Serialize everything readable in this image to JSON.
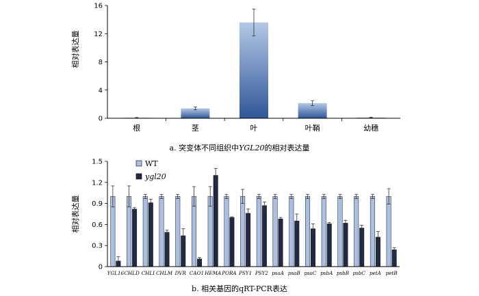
{
  "colors": {
    "bar_a_top": "#b4c8e6",
    "bar_a_bottom": "#2f5797",
    "wt_fill": "#a9bfe3",
    "mutant_fill": "#1f2a44",
    "axis": "#000000"
  },
  "chart_data": [
    {
      "type": "bar",
      "ylabel": "相对表达量",
      "ylim": [
        0,
        16
      ],
      "yticks": [
        0,
        4,
        8,
        12,
        16
      ],
      "categories": [
        "根",
        "茎",
        "叶",
        "叶鞘",
        "幼穗"
      ],
      "series": [
        {
          "values": [
            0.08,
            1.4,
            13.6,
            2.15,
            0.1
          ],
          "errors": [
            0.03,
            0.2,
            1.9,
            0.35,
            0.05
          ]
        }
      ],
      "caption": {
        "prefix": "a.  突变体不同组织中",
        "gene": "YGL20",
        "suffix": "的相对表达量"
      }
    },
    {
      "type": "bar",
      "ylabel": "相对表达量",
      "ylim": [
        0,
        1.5
      ],
      "yticks": [
        "0",
        "0.3",
        "0.6",
        "0.9",
        "1.2",
        "1.5"
      ],
      "categories": [
        "YGL16",
        "CHLD",
        "CHLI",
        "CHLM",
        "DVR",
        "CAO1",
        "HEMA",
        "PORA",
        "PSY1",
        "PSY2",
        "psaA",
        "psaB",
        "psaC",
        "psbA",
        "psbB",
        "psbC",
        "petA",
        "petB"
      ],
      "legend": "top-left",
      "series": [
        {
          "name": "WT",
          "values": [
            1.0,
            1.0,
            1.0,
            1.0,
            1.0,
            1.0,
            1.0,
            1.0,
            1.0,
            1.0,
            1.0,
            1.0,
            1.0,
            1.0,
            1.0,
            1.0,
            1.0,
            1.0
          ],
          "errors": [
            0.15,
            0.15,
            0.03,
            0.03,
            0.03,
            0.14,
            0.14,
            0.03,
            0.1,
            0.03,
            0.03,
            0.03,
            0.03,
            0.03,
            0.03,
            0.03,
            0.03,
            0.11
          ]
        },
        {
          "name": "ygl20",
          "values": [
            0.08,
            0.82,
            0.91,
            0.49,
            0.44,
            0.11,
            1.3,
            0.7,
            0.76,
            0.87,
            0.68,
            0.65,
            0.54,
            0.61,
            0.62,
            0.55,
            0.42,
            0.24
          ],
          "errors": [
            0.06,
            0.02,
            0.05,
            0.03,
            0.1,
            0.02,
            0.1,
            0.01,
            0.06,
            0.05,
            0.02,
            0.1,
            0.07,
            0.02,
            0.04,
            0.04,
            0.08,
            0.03
          ]
        }
      ],
      "caption": {
        "prefix": "b.  相关基因的qRT-PCR表达"
      }
    }
  ]
}
